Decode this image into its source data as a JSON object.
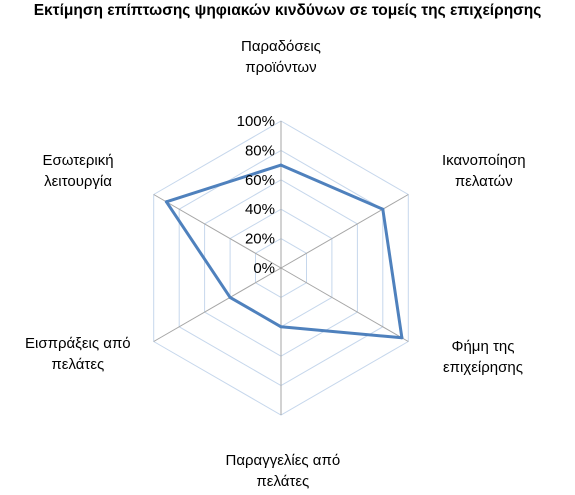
{
  "chart_data": {
    "type": "radar",
    "title": "Εκτίμηση επίπτωσης ψηφιακών κινδύνων σε τομείς της επιχείρησης",
    "categories": [
      [
        "Παραδόσεις",
        "προϊόντων"
      ],
      [
        "Ικανοποίηση",
        "πελατών"
      ],
      [
        "Φήμη της",
        "επιχείρησης"
      ],
      [
        "Παραγγελίες από",
        "πελάτες"
      ],
      [
        "Εισπράξεις από",
        "πελάτες"
      ],
      [
        "Εσωτερική",
        "λειτουργία"
      ]
    ],
    "series": [
      {
        "values": [
          70,
          80,
          95,
          40,
          40,
          90
        ]
      }
    ],
    "rlim": [
      0,
      100
    ],
    "ticks": [
      "0%",
      "20%",
      "40%",
      "60%",
      "80%",
      "100%"
    ],
    "series_color": "#4f81bd",
    "grid_color": "#c6d7ec",
    "spoke_color": "#a6a6a6",
    "legend": "none"
  }
}
